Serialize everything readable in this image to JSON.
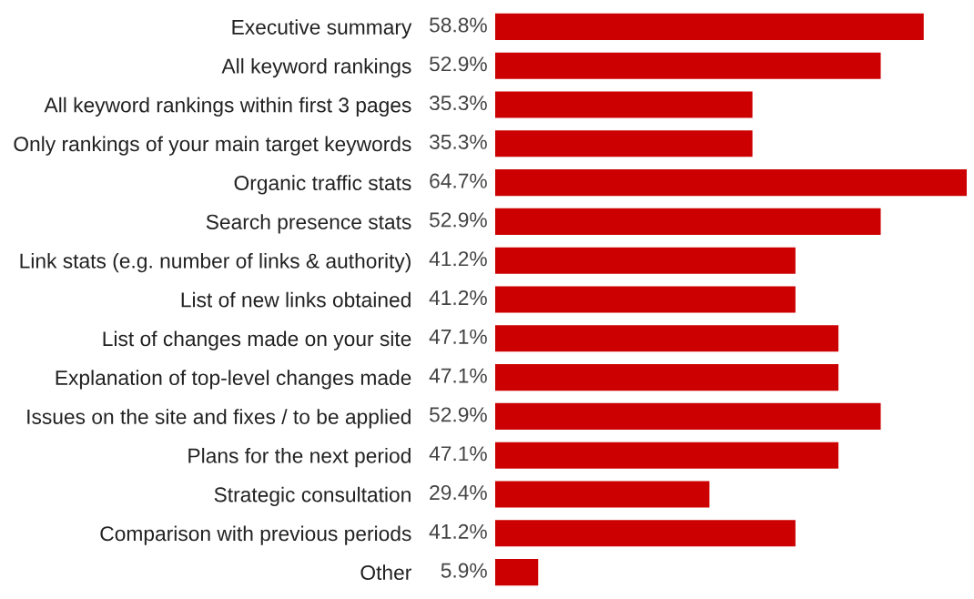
{
  "chart_data": {
    "type": "bar",
    "orientation": "horizontal",
    "color": "#cc0000",
    "categories": [
      "Executive summary",
      "All keyword rankings",
      "All keyword rankings within first 3 pages",
      "Only rankings of your main target keywords",
      "Organic traffic stats",
      "Search presence stats",
      "Link stats (e.g. number of links & authority)",
      "List of new links obtained",
      "List of changes made on your site",
      "Explanation of top-level changes made",
      "Issues on the site and fixes / to be applied",
      "Plans for the next period",
      "Strategic consultation",
      "Comparison with previous periods",
      "Other"
    ],
    "values": [
      58.8,
      52.9,
      35.3,
      35.3,
      64.7,
      52.9,
      41.2,
      41.2,
      47.1,
      47.1,
      52.9,
      47.1,
      29.4,
      41.2,
      5.9
    ],
    "value_labels": [
      "58.8%",
      "52.9%",
      "35.3%",
      "35.3%",
      "64.7%",
      "52.9%",
      "41.2%",
      "41.2%",
      "47.1%",
      "47.1%",
      "52.9%",
      "47.1%",
      "29.4%",
      "41.2%",
      "5.9%"
    ]
  }
}
